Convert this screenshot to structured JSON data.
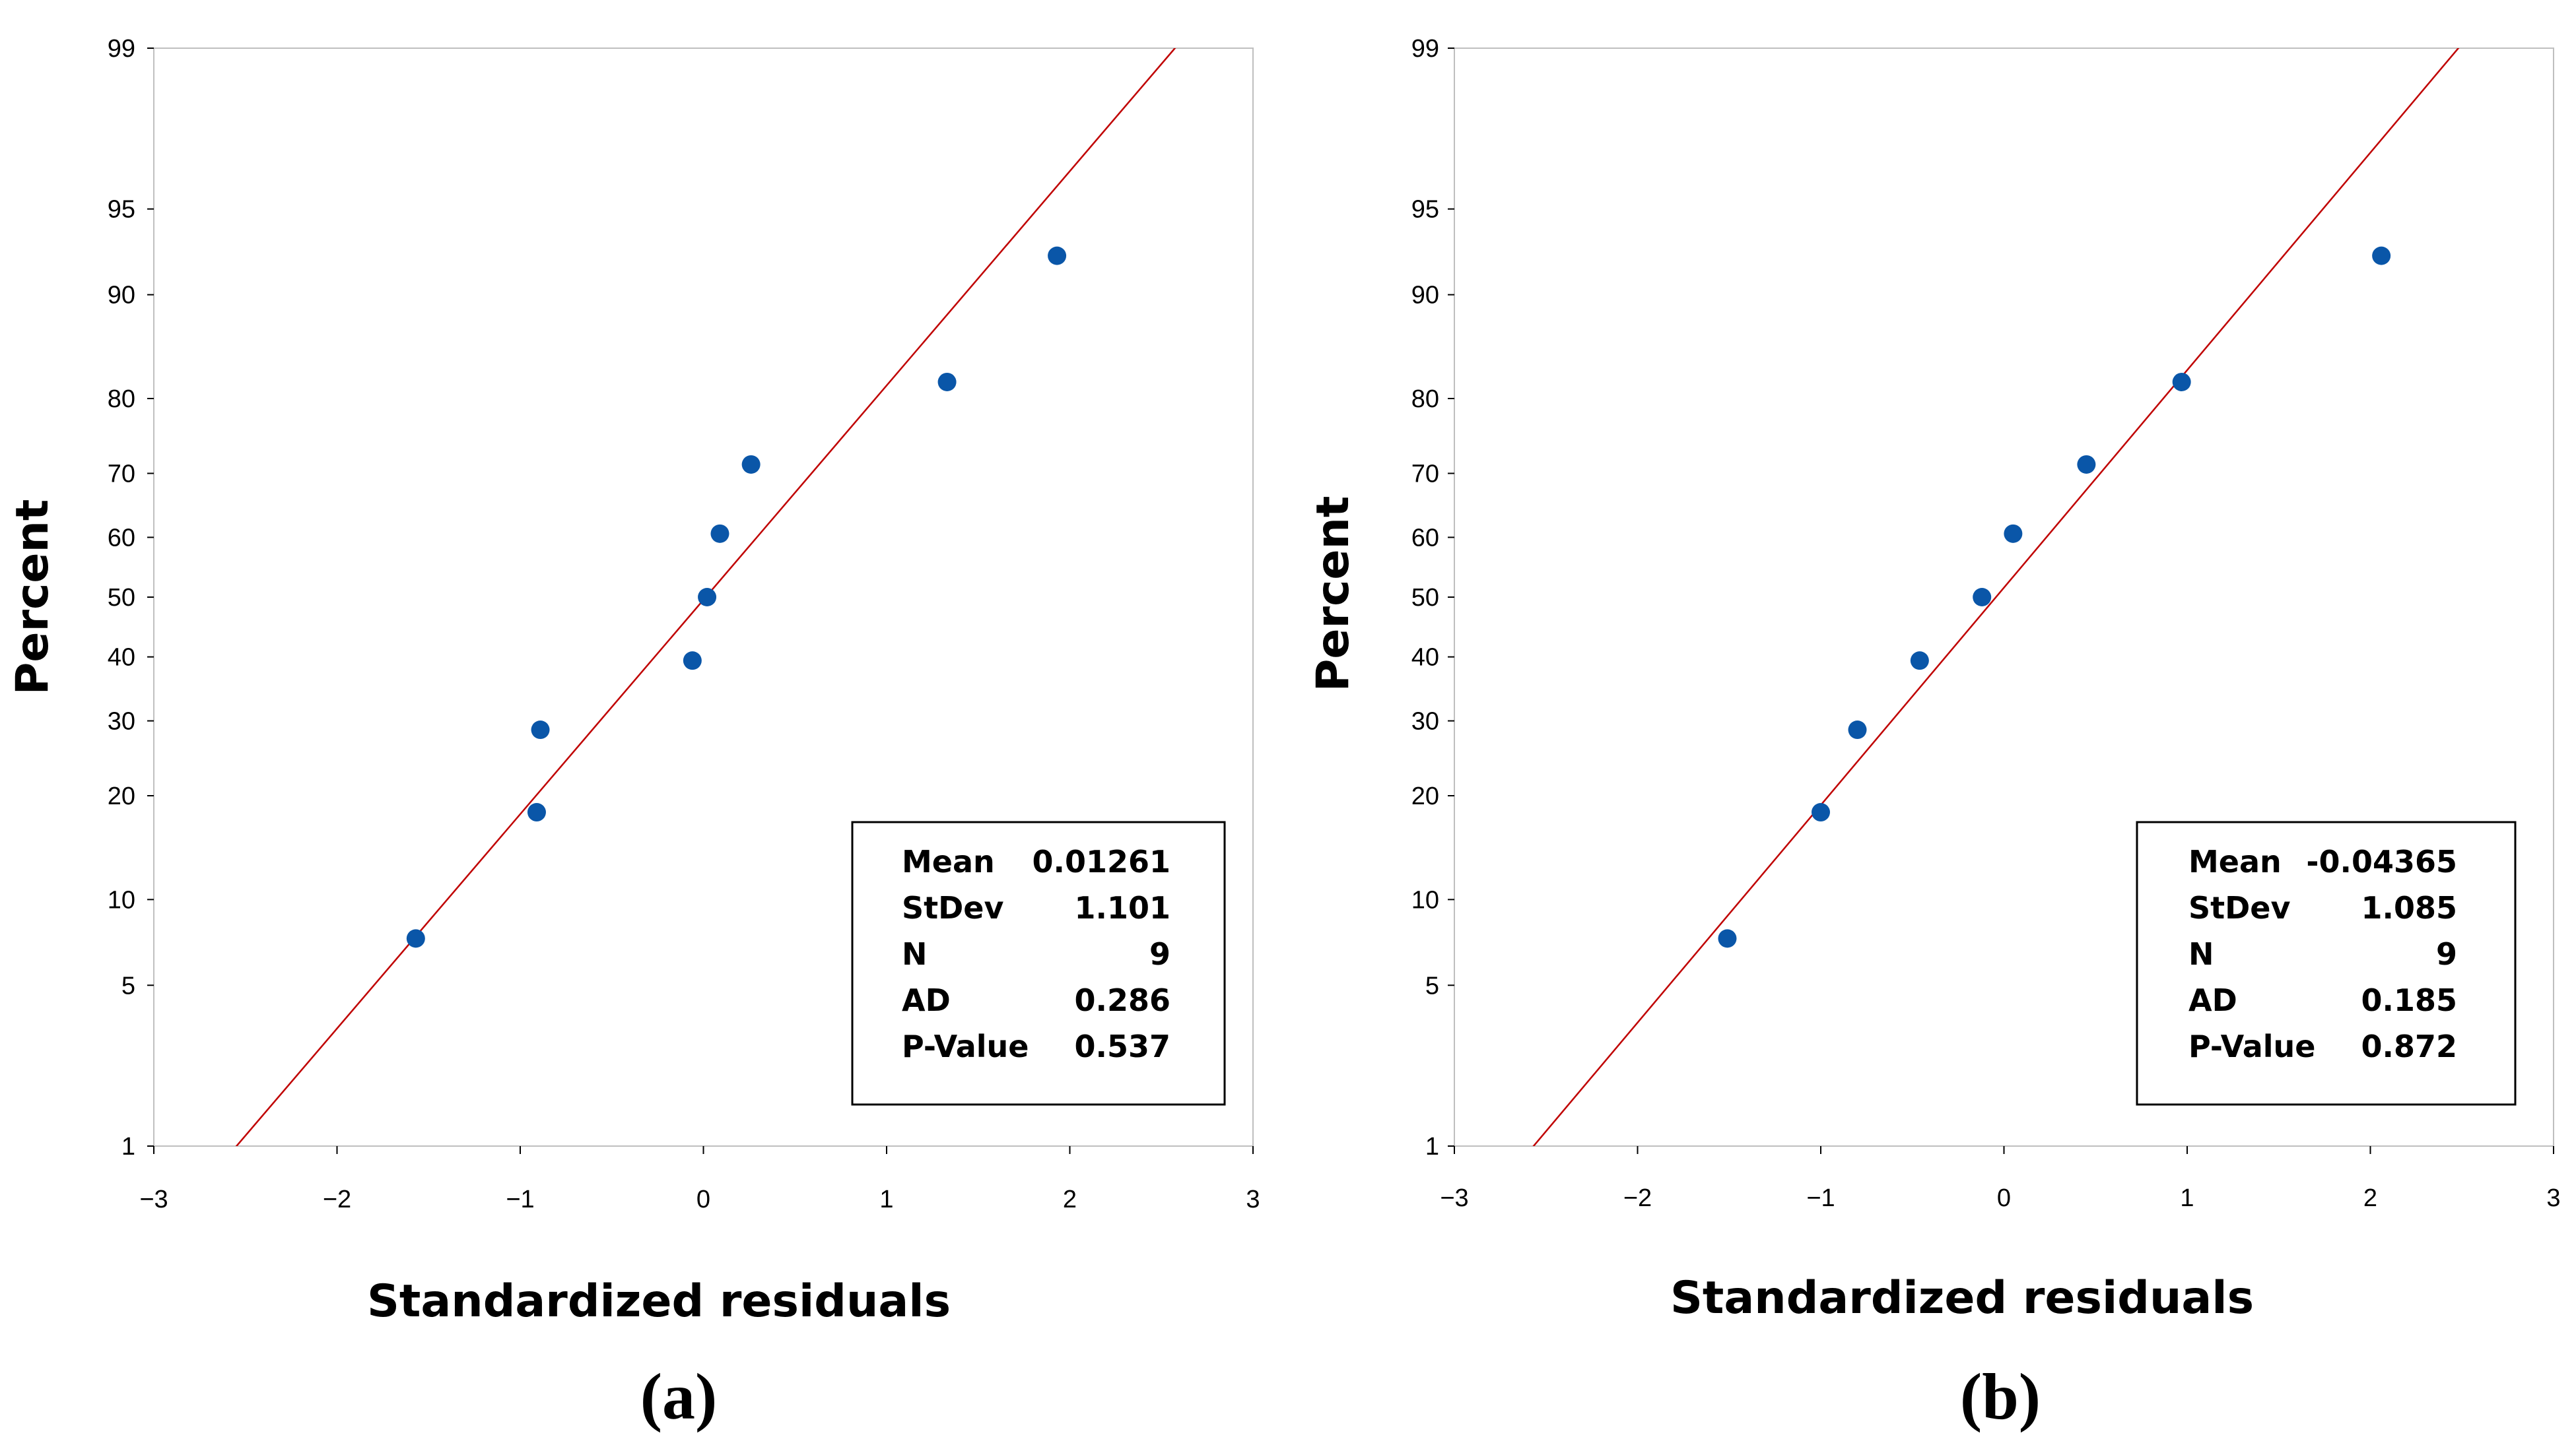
{
  "chart_data": [
    {
      "type": "scatter",
      "subtype": "normal-probability-plot",
      "caption": "(a)",
      "xlabel": "Standardized residuals",
      "ylabel": "Percent",
      "xlim": [
        -3,
        3
      ],
      "x_ticks": [
        -3,
        -2,
        -1,
        0,
        1,
        2,
        3
      ],
      "x_tick_labels": [
        "−3",
        "−2",
        "−1",
        "0",
        "1",
        "2",
        "3"
      ],
      "y_scale": "normal-probability",
      "ylim": [
        1,
        99
      ],
      "y_ticks": [
        1,
        5,
        10,
        20,
        30,
        40,
        50,
        60,
        70,
        80,
        90,
        95,
        99
      ],
      "y_tick_labels": [
        "1",
        "5",
        "10",
        "20",
        "30",
        "40",
        "50",
        "60",
        "70",
        "80",
        "90",
        "95",
        "99"
      ],
      "points": [
        {
          "x": -1.57,
          "y": 7.4
        },
        {
          "x": -0.91,
          "y": 18.1
        },
        {
          "x": -0.89,
          "y": 28.7
        },
        {
          "x": -0.06,
          "y": 39.4
        },
        {
          "x": 0.02,
          "y": 50
        },
        {
          "x": 0.09,
          "y": 60.6
        },
        {
          "x": 0.26,
          "y": 71.3
        },
        {
          "x": 1.33,
          "y": 81.9
        },
        {
          "x": 1.93,
          "y": 92.6
        }
      ],
      "fit_line": {
        "mean": 0.01261,
        "stdev": 1.101,
        "color": "#c00000"
      },
      "point_color": "#0a56a8",
      "stats": [
        {
          "label": "Mean",
          "value": "0.01261"
        },
        {
          "label": "StDev",
          "value": "1.101"
        },
        {
          "label": "N",
          "value": "9"
        },
        {
          "label": "AD",
          "value": "0.286"
        },
        {
          "label": "P-Value",
          "value": "0.537"
        }
      ]
    },
    {
      "type": "scatter",
      "subtype": "normal-probability-plot",
      "caption": "(b)",
      "xlabel": "Standardized residuals",
      "ylabel": "Percent",
      "xlim": [
        -3,
        3
      ],
      "x_ticks": [
        -3,
        -2,
        -1,
        0,
        1,
        2,
        3
      ],
      "x_tick_labels": [
        "−3",
        "−2",
        "−1",
        "0",
        "1",
        "2",
        "3"
      ],
      "y_scale": "normal-probability",
      "ylim": [
        1,
        99
      ],
      "y_ticks": [
        1,
        5,
        10,
        20,
        30,
        40,
        50,
        60,
        70,
        80,
        90,
        95,
        99
      ],
      "y_tick_labels": [
        "1",
        "5",
        "10",
        "20",
        "30",
        "40",
        "50",
        "60",
        "70",
        "80",
        "90",
        "95",
        "99"
      ],
      "points": [
        {
          "x": -1.51,
          "y": 7.4
        },
        {
          "x": -1.0,
          "y": 18.1
        },
        {
          "x": -0.8,
          "y": 28.7
        },
        {
          "x": -0.46,
          "y": 39.4
        },
        {
          "x": -0.12,
          "y": 50
        },
        {
          "x": 0.05,
          "y": 60.6
        },
        {
          "x": 0.45,
          "y": 71.3
        },
        {
          "x": 0.97,
          "y": 81.9
        },
        {
          "x": 2.06,
          "y": 92.6
        }
      ],
      "fit_line": {
        "mean": -0.04365,
        "stdev": 1.085,
        "color": "#c00000"
      },
      "point_color": "#0a56a8",
      "stats": [
        {
          "label": "Mean",
          "value": "-0.04365"
        },
        {
          "label": "StDev",
          "value": "1.085"
        },
        {
          "label": "N",
          "value": "9"
        },
        {
          "label": "AD",
          "value": "0.185"
        },
        {
          "label": "P-Value",
          "value": "0.872"
        }
      ]
    }
  ]
}
